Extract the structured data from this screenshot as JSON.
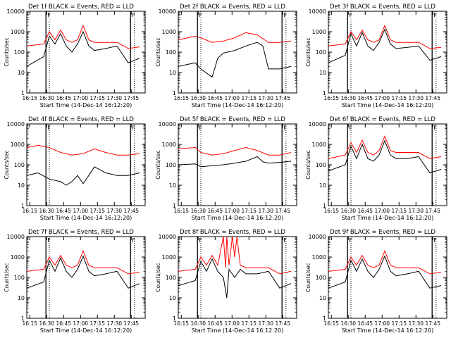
{
  "chart_data": [
    {
      "type": "line",
      "title": "Det 1f BLACK = Events, RED = LLD",
      "xlabel": "Start Time (14-Dec-14 16:12:20)",
      "ylabel": "Counts/sec",
      "x_tick_labels": [
        "16:15",
        "16:30",
        "16:45",
        "17:00",
        "17:15",
        "17:30",
        "17:45"
      ],
      "y_tick_labels": [
        "1",
        "10",
        "100",
        "1000",
        "10000"
      ],
      "y_scale": "log",
      "ylim": [
        1,
        10000
      ],
      "attenuator_markers": [
        "F",
        "F"
      ],
      "series": [
        {
          "color": "#000000",
          "x_min": [
            0,
            15,
            20,
            25,
            30,
            35,
            40,
            45,
            50,
            55,
            60,
            70,
            80,
            90,
            100
          ],
          "y": [
            20,
            60,
            600,
            250,
            800,
            200,
            100,
            250,
            1000,
            200,
            120,
            150,
            200,
            30,
            50
          ]
        },
        {
          "color": "#ff0000",
          "x_min": [
            0,
            15,
            20,
            25,
            30,
            35,
            40,
            45,
            50,
            55,
            60,
            70,
            80,
            90,
            100
          ],
          "y": [
            200,
            250,
            1000,
            400,
            1200,
            400,
            300,
            400,
            2000,
            400,
            300,
            300,
            300,
            150,
            180
          ]
        }
      ]
    },
    {
      "type": "line",
      "title": "Det 2f BLACK = Events, RED = LLD",
      "xlabel": "Start Time (14-Dec-14 16:12:20)",
      "ylabel": "Counts/sec",
      "x_tick_labels": [
        "16:15",
        "16:30",
        "16:45",
        "17:00",
        "17:15",
        "17:30",
        "17:45"
      ],
      "y_tick_labels": [
        "1",
        "10",
        "100",
        "1000",
        "10000"
      ],
      "y_scale": "log",
      "ylim": [
        1,
        10000
      ],
      "attenuator_markers": [
        "F",
        "F"
      ],
      "series": [
        {
          "color": "#000000",
          "x_min": [
            0,
            15,
            20,
            30,
            35,
            40,
            50,
            60,
            70,
            75,
            80,
            90,
            100
          ],
          "y": [
            20,
            30,
            15,
            6,
            50,
            90,
            120,
            200,
            300,
            200,
            15,
            15,
            20
          ]
        },
        {
          "color": "#ff0000",
          "x_min": [
            0,
            15,
            20,
            30,
            40,
            50,
            60,
            70,
            80,
            90,
            100
          ],
          "y": [
            400,
            600,
            500,
            300,
            350,
            500,
            900,
            700,
            300,
            300,
            350
          ]
        }
      ]
    },
    {
      "type": "line",
      "title": "Det 3f BLACK = Events, RED = LLD",
      "xlabel": "Start Time (14-Dec-14 16:12:20)",
      "ylabel": "Counts/sec",
      "x_tick_labels": [
        "16:15",
        "16:30",
        "16:45",
        "17:00",
        "17:15",
        "17:30",
        "17:45"
      ],
      "y_tick_labels": [
        "1",
        "10",
        "100",
        "1000",
        "10000"
      ],
      "y_scale": "log",
      "ylim": [
        1,
        10000
      ],
      "attenuator_markers": [
        "F",
        "F"
      ],
      "series": [
        {
          "color": "#000000",
          "x_min": [
            0,
            15,
            20,
            25,
            30,
            35,
            40,
            45,
            50,
            55,
            60,
            70,
            80,
            90,
            100
          ],
          "y": [
            30,
            70,
            800,
            200,
            900,
            200,
            120,
            300,
            1300,
            250,
            150,
            170,
            200,
            40,
            60
          ]
        },
        {
          "color": "#ff0000",
          "x_min": [
            0,
            15,
            20,
            25,
            30,
            35,
            40,
            45,
            50,
            55,
            60,
            70,
            80,
            90,
            100
          ],
          "y": [
            200,
            250,
            1000,
            400,
            1200,
            400,
            300,
            400,
            2000,
            400,
            300,
            300,
            300,
            150,
            170
          ]
        }
      ]
    },
    {
      "type": "line",
      "title": "Det 4f BLACK = Events, RED = LLD",
      "xlabel": "Start Time (14-Dec-14 16:12:20)",
      "ylabel": "Counts/sec",
      "x_tick_labels": [
        "16:15",
        "16:30",
        "16:45",
        "17:00",
        "17:15",
        "17:30",
        "17:45"
      ],
      "y_tick_labels": [
        "1",
        "10",
        "100",
        "1000",
        "10000"
      ],
      "y_scale": "log",
      "ylim": [
        1,
        10000
      ],
      "attenuator_markers": [
        "F",
        "F"
      ],
      "series": [
        {
          "color": "#000000",
          "x_min": [
            0,
            10,
            20,
            30,
            35,
            40,
            45,
            50,
            55,
            60,
            70,
            80,
            90,
            100
          ],
          "y": [
            30,
            40,
            20,
            15,
            10,
            15,
            30,
            12,
            30,
            80,
            40,
            30,
            30,
            40
          ]
        },
        {
          "color": "#ff0000",
          "x_min": [
            0,
            10,
            20,
            30,
            40,
            50,
            60,
            70,
            80,
            90,
            100
          ],
          "y": [
            700,
            900,
            700,
            400,
            300,
            350,
            600,
            400,
            300,
            300,
            350
          ]
        }
      ]
    },
    {
      "type": "line",
      "title": "Det 5f BLACK = Events, RED = LLD",
      "xlabel": "Start Time (14-Dec-14 16:12:20)",
      "ylabel": "Counts/sec",
      "x_tick_labels": [
        "16:15",
        "16:30",
        "16:45",
        "17:00",
        "17:15",
        "17:30",
        "17:45"
      ],
      "y_tick_labels": [
        "1",
        "10",
        "100",
        "1000",
        "10000"
      ],
      "y_scale": "log",
      "ylim": [
        1,
        10000
      ],
      "attenuator_markers": [
        "F",
        "F"
      ],
      "series": [
        {
          "color": "#000000",
          "x_min": [
            0,
            15,
            20,
            30,
            40,
            50,
            60,
            70,
            75,
            80,
            90,
            100
          ],
          "y": [
            100,
            110,
            80,
            90,
            100,
            120,
            150,
            250,
            140,
            120,
            130,
            150
          ]
        },
        {
          "color": "#ff0000",
          "x_min": [
            0,
            15,
            20,
            30,
            40,
            50,
            60,
            70,
            80,
            90,
            100
          ],
          "y": [
            600,
            700,
            400,
            300,
            350,
            500,
            700,
            500,
            300,
            300,
            400
          ]
        }
      ]
    },
    {
      "type": "line",
      "title": "Det 6f BLACK = Events, RED = LLD",
      "xlabel": "Start Time (14-Dec-14 16:12:20)",
      "ylabel": "Counts/sec",
      "x_tick_labels": [
        "16:15",
        "16:30",
        "16:45",
        "17:00",
        "17:15",
        "17:30",
        "17:45"
      ],
      "y_tick_labels": [
        "1",
        "10",
        "100",
        "1000",
        "10000"
      ],
      "y_scale": "log",
      "ylim": [
        1,
        10000
      ],
      "attenuator_markers": [
        "F",
        "F"
      ],
      "series": [
        {
          "color": "#000000",
          "x_min": [
            0,
            15,
            20,
            25,
            30,
            35,
            40,
            45,
            50,
            55,
            60,
            70,
            80,
            90,
            100
          ],
          "y": [
            50,
            100,
            800,
            200,
            1000,
            200,
            150,
            300,
            1500,
            300,
            200,
            200,
            250,
            40,
            60
          ]
        },
        {
          "color": "#ff0000",
          "x_min": [
            0,
            15,
            20,
            25,
            30,
            35,
            40,
            45,
            50,
            55,
            60,
            70,
            80,
            90,
            100
          ],
          "y": [
            200,
            300,
            1200,
            400,
            1600,
            400,
            300,
            500,
            2500,
            500,
            400,
            400,
            400,
            200,
            250
          ]
        }
      ]
    },
    {
      "type": "line",
      "title": "Det 7f BLACK = Events, RED = LLD",
      "xlabel": "Start Time (14-Dec-14 16:12:20)",
      "ylabel": "Counts/sec",
      "x_tick_labels": [
        "16:15",
        "16:30",
        "16:45",
        "17:00",
        "17:15",
        "17:30",
        "17:45"
      ],
      "y_tick_labels": [
        "1",
        "10",
        "100",
        "1000",
        "10000"
      ],
      "y_scale": "log",
      "ylim": [
        1,
        10000
      ],
      "attenuator_markers": [
        "F",
        "F"
      ],
      "series": [
        {
          "color": "#000000",
          "x_min": [
            0,
            15,
            20,
            25,
            30,
            35,
            40,
            45,
            50,
            55,
            60,
            70,
            80,
            90,
            100
          ],
          "y": [
            30,
            60,
            700,
            200,
            900,
            200,
            100,
            250,
            1100,
            200,
            120,
            150,
            200,
            30,
            50
          ]
        },
        {
          "color": "#ff0000",
          "x_min": [
            0,
            15,
            20,
            25,
            30,
            35,
            40,
            45,
            50,
            55,
            60,
            70,
            80,
            90,
            100
          ],
          "y": [
            200,
            250,
            1000,
            400,
            1200,
            400,
            300,
            400,
            2000,
            400,
            300,
            300,
            300,
            150,
            180
          ]
        }
      ]
    },
    {
      "type": "line",
      "title": "Det 8f BLACK = Events, RED = LLD",
      "xlabel": "Start Time (14-Dec-14 16:12:20)",
      "ylabel": "Counts/sec",
      "x_tick_labels": [
        "16:15",
        "16:30",
        "16:45",
        "17:00",
        "17:15",
        "17:30",
        "17:45"
      ],
      "y_tick_labels": [
        "1",
        "10",
        "100",
        "1000",
        "10000"
      ],
      "y_scale": "log",
      "ylim": [
        1,
        10000
      ],
      "attenuator_markers": [
        "F",
        "F"
      ],
      "series": [
        {
          "color": "#000000",
          "x_min": [
            0,
            15,
            20,
            25,
            30,
            35,
            40,
            43,
            45,
            50,
            55,
            60,
            70,
            80,
            90,
            100
          ],
          "y": [
            40,
            70,
            600,
            200,
            800,
            200,
            100,
            10,
            250,
            100,
            250,
            150,
            150,
            200,
            30,
            50
          ]
        },
        {
          "color": "#ff0000",
          "x_min": [
            0,
            15,
            20,
            25,
            30,
            35,
            40,
            42,
            43,
            45,
            48,
            50,
            52,
            55,
            60,
            70,
            80,
            90,
            100
          ],
          "y": [
            200,
            250,
            1000,
            400,
            1200,
            400,
            10000,
            300,
            10000,
            400,
            10000,
            1000,
            10000,
            400,
            300,
            300,
            300,
            150,
            200
          ]
        }
      ]
    },
    {
      "type": "line",
      "title": "Det 9f BLACK = Events, RED = LLD",
      "xlabel": "Start Time (14-Dec-14 16:12:20)",
      "ylabel": "Counts/sec",
      "x_tick_labels": [
        "16:15",
        "16:30",
        "16:45",
        "17:00",
        "17:15",
        "17:30",
        "17:45"
      ],
      "y_tick_labels": [
        "1",
        "10",
        "100",
        "1000",
        "10000"
      ],
      "y_scale": "log",
      "ylim": [
        1,
        10000
      ],
      "attenuator_markers": [
        "F",
        "F"
      ],
      "series": [
        {
          "color": "#000000",
          "x_min": [
            0,
            15,
            20,
            25,
            30,
            35,
            40,
            45,
            50,
            55,
            60,
            70,
            80,
            90,
            100
          ],
          "y": [
            30,
            60,
            700,
            200,
            800,
            200,
            100,
            250,
            1100,
            200,
            120,
            150,
            200,
            30,
            40
          ]
        },
        {
          "color": "#ff0000",
          "x_min": [
            0,
            15,
            20,
            25,
            30,
            35,
            40,
            45,
            50,
            55,
            60,
            70,
            80,
            90,
            100
          ],
          "y": [
            200,
            250,
            1000,
            400,
            1200,
            400,
            300,
            400,
            2000,
            400,
            300,
            300,
            300,
            150,
            180
          ]
        }
      ]
    }
  ]
}
